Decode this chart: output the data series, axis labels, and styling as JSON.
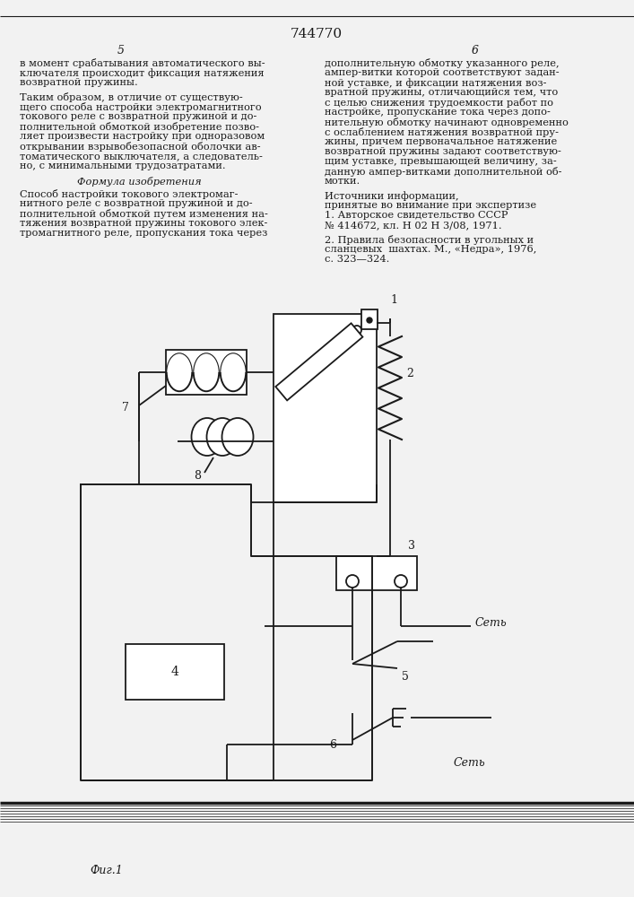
{
  "title": "744770",
  "background_color": "#f2f2f2",
  "line_color": "#1a1a1a",
  "text_color": "#1a1a1a",
  "left_col_texts": [
    "в момент срабатывания автоматического вы-",
    "ключателя происходит фиксация натяжения",
    "возвратной пружины.",
    "",
    "Таким образом, в отличие от существую-",
    "щего способа настройки электромагнитного",
    "токового реле с возвратной пружиной и до-",
    "полнительной обмоткой изобретение позво-",
    "ляет произвести настройку при одноразовом",
    "открывании взрывобезопасной оболочки ав-",
    "томатического выключателя, а следователь-",
    "но, с минимальными трудозатратами."
  ],
  "right_col_texts": [
    "дополнительную обмотку указанного реле,",
    "ампер-витки которой соответствуют задан-",
    "ной уставке, и фиксации натяжения воз-",
    "вратной пружины, отличающийся тем, что",
    "с целью снижения трудоемкости работ по",
    "настройке, пропускание тока через допо-",
    "нительную обмотку начинают одновременно",
    "с ослаблением натяжения возвратной пру-",
    "жины, причем первоначальное натяжение",
    "возвратной пружины задают соответствую-",
    "щим уставке, превышающей величину, за-",
    "данную ампер-витками дополнительной об-",
    "мотки."
  ],
  "formula_lines": [
    "Способ настройки токового электромаг-",
    "нитного реле с возвратной пружиной и до-",
    "полнительной обмоткой путем изменения на-",
    "тяжения возвратной пружины токового элек-",
    "тромагнитного реле, пропускания тока через"
  ],
  "sources_lines": [
    "Источники информации,",
    "принятые во внимание при экспертизе",
    "1. Авторское свидетельство СССР",
    "№ 414672, кл. Н 02 Н 3/08, 1971.",
    "",
    "2. Правила безопасности в угольных и",
    "сланцевых  шахтах. М., «Недра», 1976,",
    "с. 323—324."
  ]
}
